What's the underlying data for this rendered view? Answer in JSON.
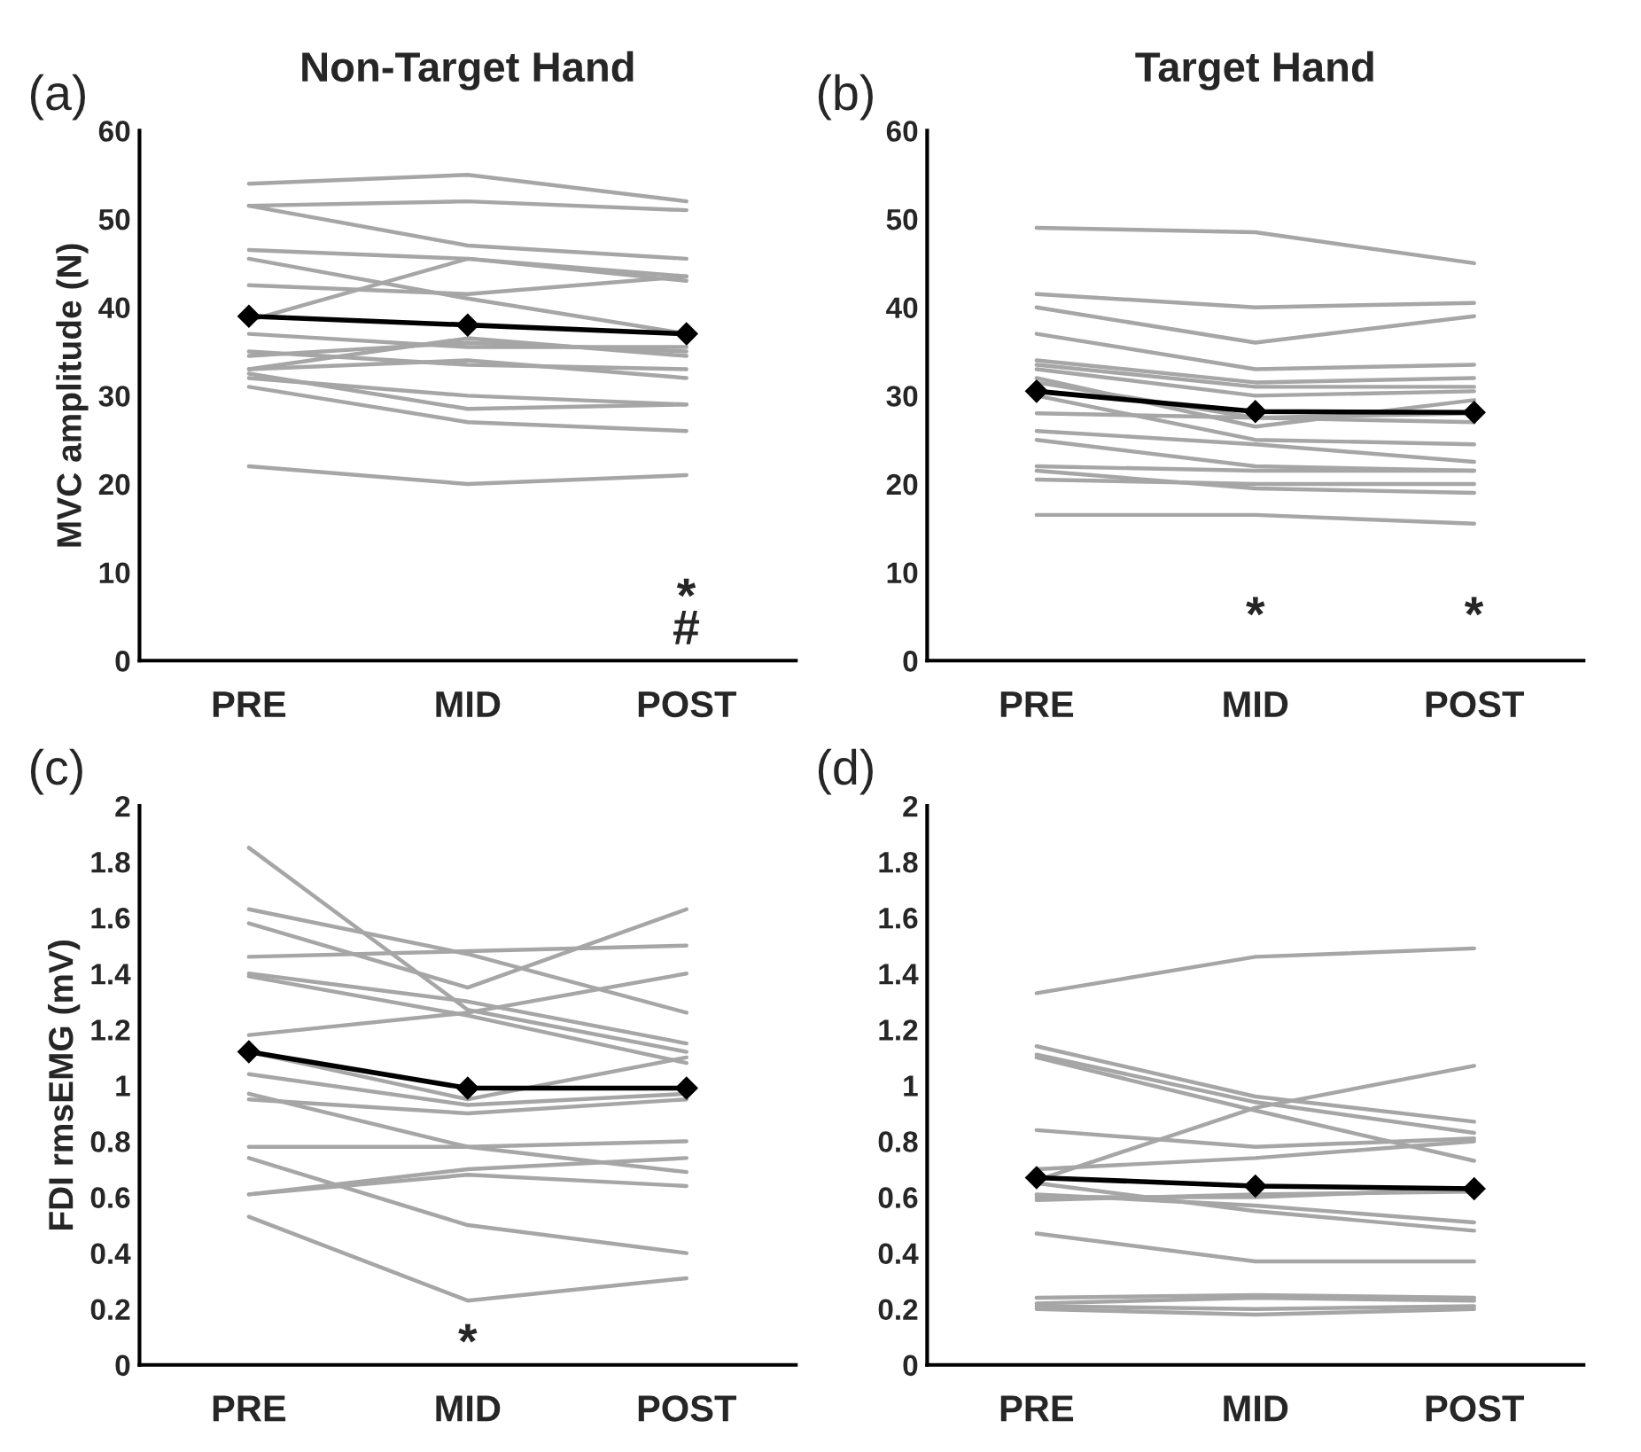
{
  "chart_data": [
    {
      "type": "line",
      "title": "Non-Target Hand",
      "ylabel": "MVC amplitude (N)",
      "categories": [
        "PRE",
        "MID",
        "POST"
      ],
      "ylim": [
        0,
        60
      ],
      "yticks": [
        0,
        10,
        20,
        30,
        40,
        50,
        60
      ],
      "grid": false,
      "legend": false,
      "annotations": [
        "(a)",
        "*",
        "#"
      ],
      "series": [
        {
          "color": "#a6a6a6",
          "values": [
            54,
            55,
            52
          ]
        },
        {
          "color": "#a6a6a6",
          "values": [
            51.5,
            52,
            51
          ]
        },
        {
          "color": "#a6a6a6",
          "values": [
            51.5,
            47,
            45.5
          ]
        },
        {
          "color": "#a6a6a6",
          "values": [
            46.5,
            45.5,
            43
          ]
        },
        {
          "color": "#a6a6a6",
          "values": [
            45.5,
            41,
            37
          ]
        },
        {
          "color": "#a6a6a6",
          "values": [
            42.5,
            41.5,
            43.5
          ]
        },
        {
          "color": "#a6a6a6",
          "values": [
            38.5,
            45.5,
            43.5
          ]
        },
        {
          "color": "#a6a6a6",
          "values": [
            37,
            35.5,
            35.5
          ]
        },
        {
          "color": "#a6a6a6",
          "values": [
            35,
            33.5,
            33
          ]
        },
        {
          "color": "#a6a6a6",
          "values": [
            34.5,
            36,
            35
          ]
        },
        {
          "color": "#a6a6a6",
          "values": [
            33,
            36.5,
            34.5
          ]
        },
        {
          "color": "#a6a6a6",
          "values": [
            33,
            34,
            32
          ]
        },
        {
          "color": "#a6a6a6",
          "values": [
            32.5,
            28.5,
            29
          ]
        },
        {
          "color": "#a6a6a6",
          "values": [
            31,
            27,
            26
          ]
        },
        {
          "color": "#a6a6a6",
          "values": [
            32,
            30,
            29
          ]
        },
        {
          "color": "#a6a6a6",
          "values": [
            22,
            20,
            21
          ]
        },
        {
          "color": "#000000",
          "values": [
            39,
            38,
            37
          ],
          "marker": "diamond"
        }
      ]
    },
    {
      "type": "line",
      "title": "Target Hand",
      "categories": [
        "PRE",
        "MID",
        "POST"
      ],
      "ylim": [
        0,
        60
      ],
      "yticks": [
        0,
        10,
        20,
        30,
        40,
        50,
        60
      ],
      "grid": false,
      "legend": false,
      "annotations": [
        "(b)",
        "*",
        "*"
      ],
      "series": [
        {
          "color": "#a6a6a6",
          "values": [
            49,
            48.5,
            45
          ]
        },
        {
          "color": "#a6a6a6",
          "values": [
            41.5,
            40,
            40.5
          ]
        },
        {
          "color": "#a6a6a6",
          "values": [
            40,
            36,
            39
          ]
        },
        {
          "color": "#a6a6a6",
          "values": [
            37,
            33,
            33.5
          ]
        },
        {
          "color": "#a6a6a6",
          "values": [
            34,
            31.5,
            32
          ]
        },
        {
          "color": "#a6a6a6",
          "values": [
            33.5,
            31,
            31
          ]
        },
        {
          "color": "#a6a6a6",
          "values": [
            33,
            30,
            30.5
          ]
        },
        {
          "color": "#a6a6a6",
          "values": [
            32,
            26.5,
            29.5
          ]
        },
        {
          "color": "#a6a6a6",
          "values": [
            31.5,
            27.5,
            27
          ]
        },
        {
          "color": "#a6a6a6",
          "values": [
            30,
            25,
            24.5
          ]
        },
        {
          "color": "#a6a6a6",
          "values": [
            28,
            27.5,
            28
          ]
        },
        {
          "color": "#a6a6a6",
          "values": [
            26,
            24.5,
            22.5
          ]
        },
        {
          "color": "#a6a6a6",
          "values": [
            25,
            22,
            21.5
          ]
        },
        {
          "color": "#a6a6a6",
          "values": [
            22,
            21.5,
            21.5
          ]
        },
        {
          "color": "#a6a6a6",
          "values": [
            21.5,
            19.5,
            19
          ]
        },
        {
          "color": "#a6a6a6",
          "values": [
            20.5,
            20,
            20
          ]
        },
        {
          "color": "#a6a6a6",
          "values": [
            16.5,
            16.5,
            15.5
          ]
        },
        {
          "color": "#000000",
          "values": [
            30.5,
            28.2,
            28.1
          ],
          "marker": "diamond"
        }
      ]
    },
    {
      "type": "line",
      "ylabel": "FDI rmsEMG (mV)",
      "categories": [
        "PRE",
        "MID",
        "POST"
      ],
      "ylim": [
        0,
        2
      ],
      "yticks": [
        0,
        0.2,
        0.4,
        0.6,
        0.8,
        1,
        1.2,
        1.4,
        1.6,
        1.8,
        2
      ],
      "grid": false,
      "legend": false,
      "annotations": [
        "(c)",
        "*"
      ],
      "series": [
        {
          "color": "#a6a6a6",
          "values": [
            1.85,
            1.27,
            1.12
          ]
        },
        {
          "color": "#a6a6a6",
          "values": [
            1.63,
            1.47,
            1.26
          ]
        },
        {
          "color": "#a6a6a6",
          "values": [
            1.58,
            1.35,
            1.63
          ]
        },
        {
          "color": "#a6a6a6",
          "values": [
            1.46,
            1.48,
            1.5
          ]
        },
        {
          "color": "#a6a6a6",
          "values": [
            1.4,
            1.3,
            1.15
          ]
        },
        {
          "color": "#a6a6a6",
          "values": [
            1.39,
            1.25,
            1.08
          ]
        },
        {
          "color": "#a6a6a6",
          "values": [
            1.18,
            1.26,
            1.4
          ]
        },
        {
          "color": "#a6a6a6",
          "values": [
            1.12,
            0.95,
            1.1
          ]
        },
        {
          "color": "#a6a6a6",
          "values": [
            1.04,
            0.93,
            0.97
          ]
        },
        {
          "color": "#a6a6a6",
          "values": [
            0.97,
            0.78,
            0.69
          ]
        },
        {
          "color": "#a6a6a6",
          "values": [
            0.95,
            0.9,
            0.95
          ]
        },
        {
          "color": "#a6a6a6",
          "values": [
            0.78,
            0.78,
            0.8
          ]
        },
        {
          "color": "#a6a6a6",
          "values": [
            0.74,
            0.5,
            0.4
          ]
        },
        {
          "color": "#a6a6a6",
          "values": [
            0.61,
            0.7,
            0.74
          ]
        },
        {
          "color": "#a6a6a6",
          "values": [
            0.61,
            0.68,
            0.64
          ]
        },
        {
          "color": "#a6a6a6",
          "values": [
            0.53,
            0.23,
            0.31
          ]
        },
        {
          "color": "#000000",
          "values": [
            1.12,
            0.99,
            0.99
          ],
          "marker": "diamond"
        }
      ]
    },
    {
      "type": "line",
      "categories": [
        "PRE",
        "MID",
        "POST"
      ],
      "ylim": [
        0,
        2
      ],
      "yticks": [
        0,
        0.2,
        0.4,
        0.6,
        0.8,
        1,
        1.2,
        1.4,
        1.6,
        1.8,
        2
      ],
      "grid": false,
      "legend": false,
      "annotations": [
        "(d)"
      ],
      "series": [
        {
          "color": "#a6a6a6",
          "values": [
            1.33,
            1.46,
            1.49
          ]
        },
        {
          "color": "#a6a6a6",
          "values": [
            1.14,
            0.96,
            0.87
          ]
        },
        {
          "color": "#a6a6a6",
          "values": [
            1.11,
            0.94,
            0.83
          ]
        },
        {
          "color": "#a6a6a6",
          "values": [
            1.1,
            0.91,
            0.73
          ]
        },
        {
          "color": "#a6a6a6",
          "values": [
            0.84,
            0.78,
            0.81
          ]
        },
        {
          "color": "#a6a6a6",
          "values": [
            0.7,
            0.74,
            0.8
          ]
        },
        {
          "color": "#a6a6a6",
          "values": [
            0.66,
            0.92,
            1.07
          ]
        },
        {
          "color": "#a6a6a6",
          "values": [
            0.65,
            0.55,
            0.48
          ]
        },
        {
          "color": "#a6a6a6",
          "values": [
            0.61,
            0.57,
            0.51
          ]
        },
        {
          "color": "#a6a6a6",
          "values": [
            0.6,
            0.6,
            0.63
          ]
        },
        {
          "color": "#a6a6a6",
          "values": [
            0.59,
            0.61,
            0.62
          ]
        },
        {
          "color": "#a6a6a6",
          "values": [
            0.47,
            0.37,
            0.37
          ]
        },
        {
          "color": "#a6a6a6",
          "values": [
            0.24,
            0.25,
            0.24
          ]
        },
        {
          "color": "#a6a6a6",
          "values": [
            0.22,
            0.24,
            0.23
          ]
        },
        {
          "color": "#a6a6a6",
          "values": [
            0.21,
            0.2,
            0.21
          ]
        },
        {
          "color": "#a6a6a6",
          "values": [
            0.2,
            0.18,
            0.2
          ]
        },
        {
          "color": "#000000",
          "values": [
            0.67,
            0.64,
            0.63
          ],
          "marker": "diamond"
        }
      ]
    }
  ]
}
